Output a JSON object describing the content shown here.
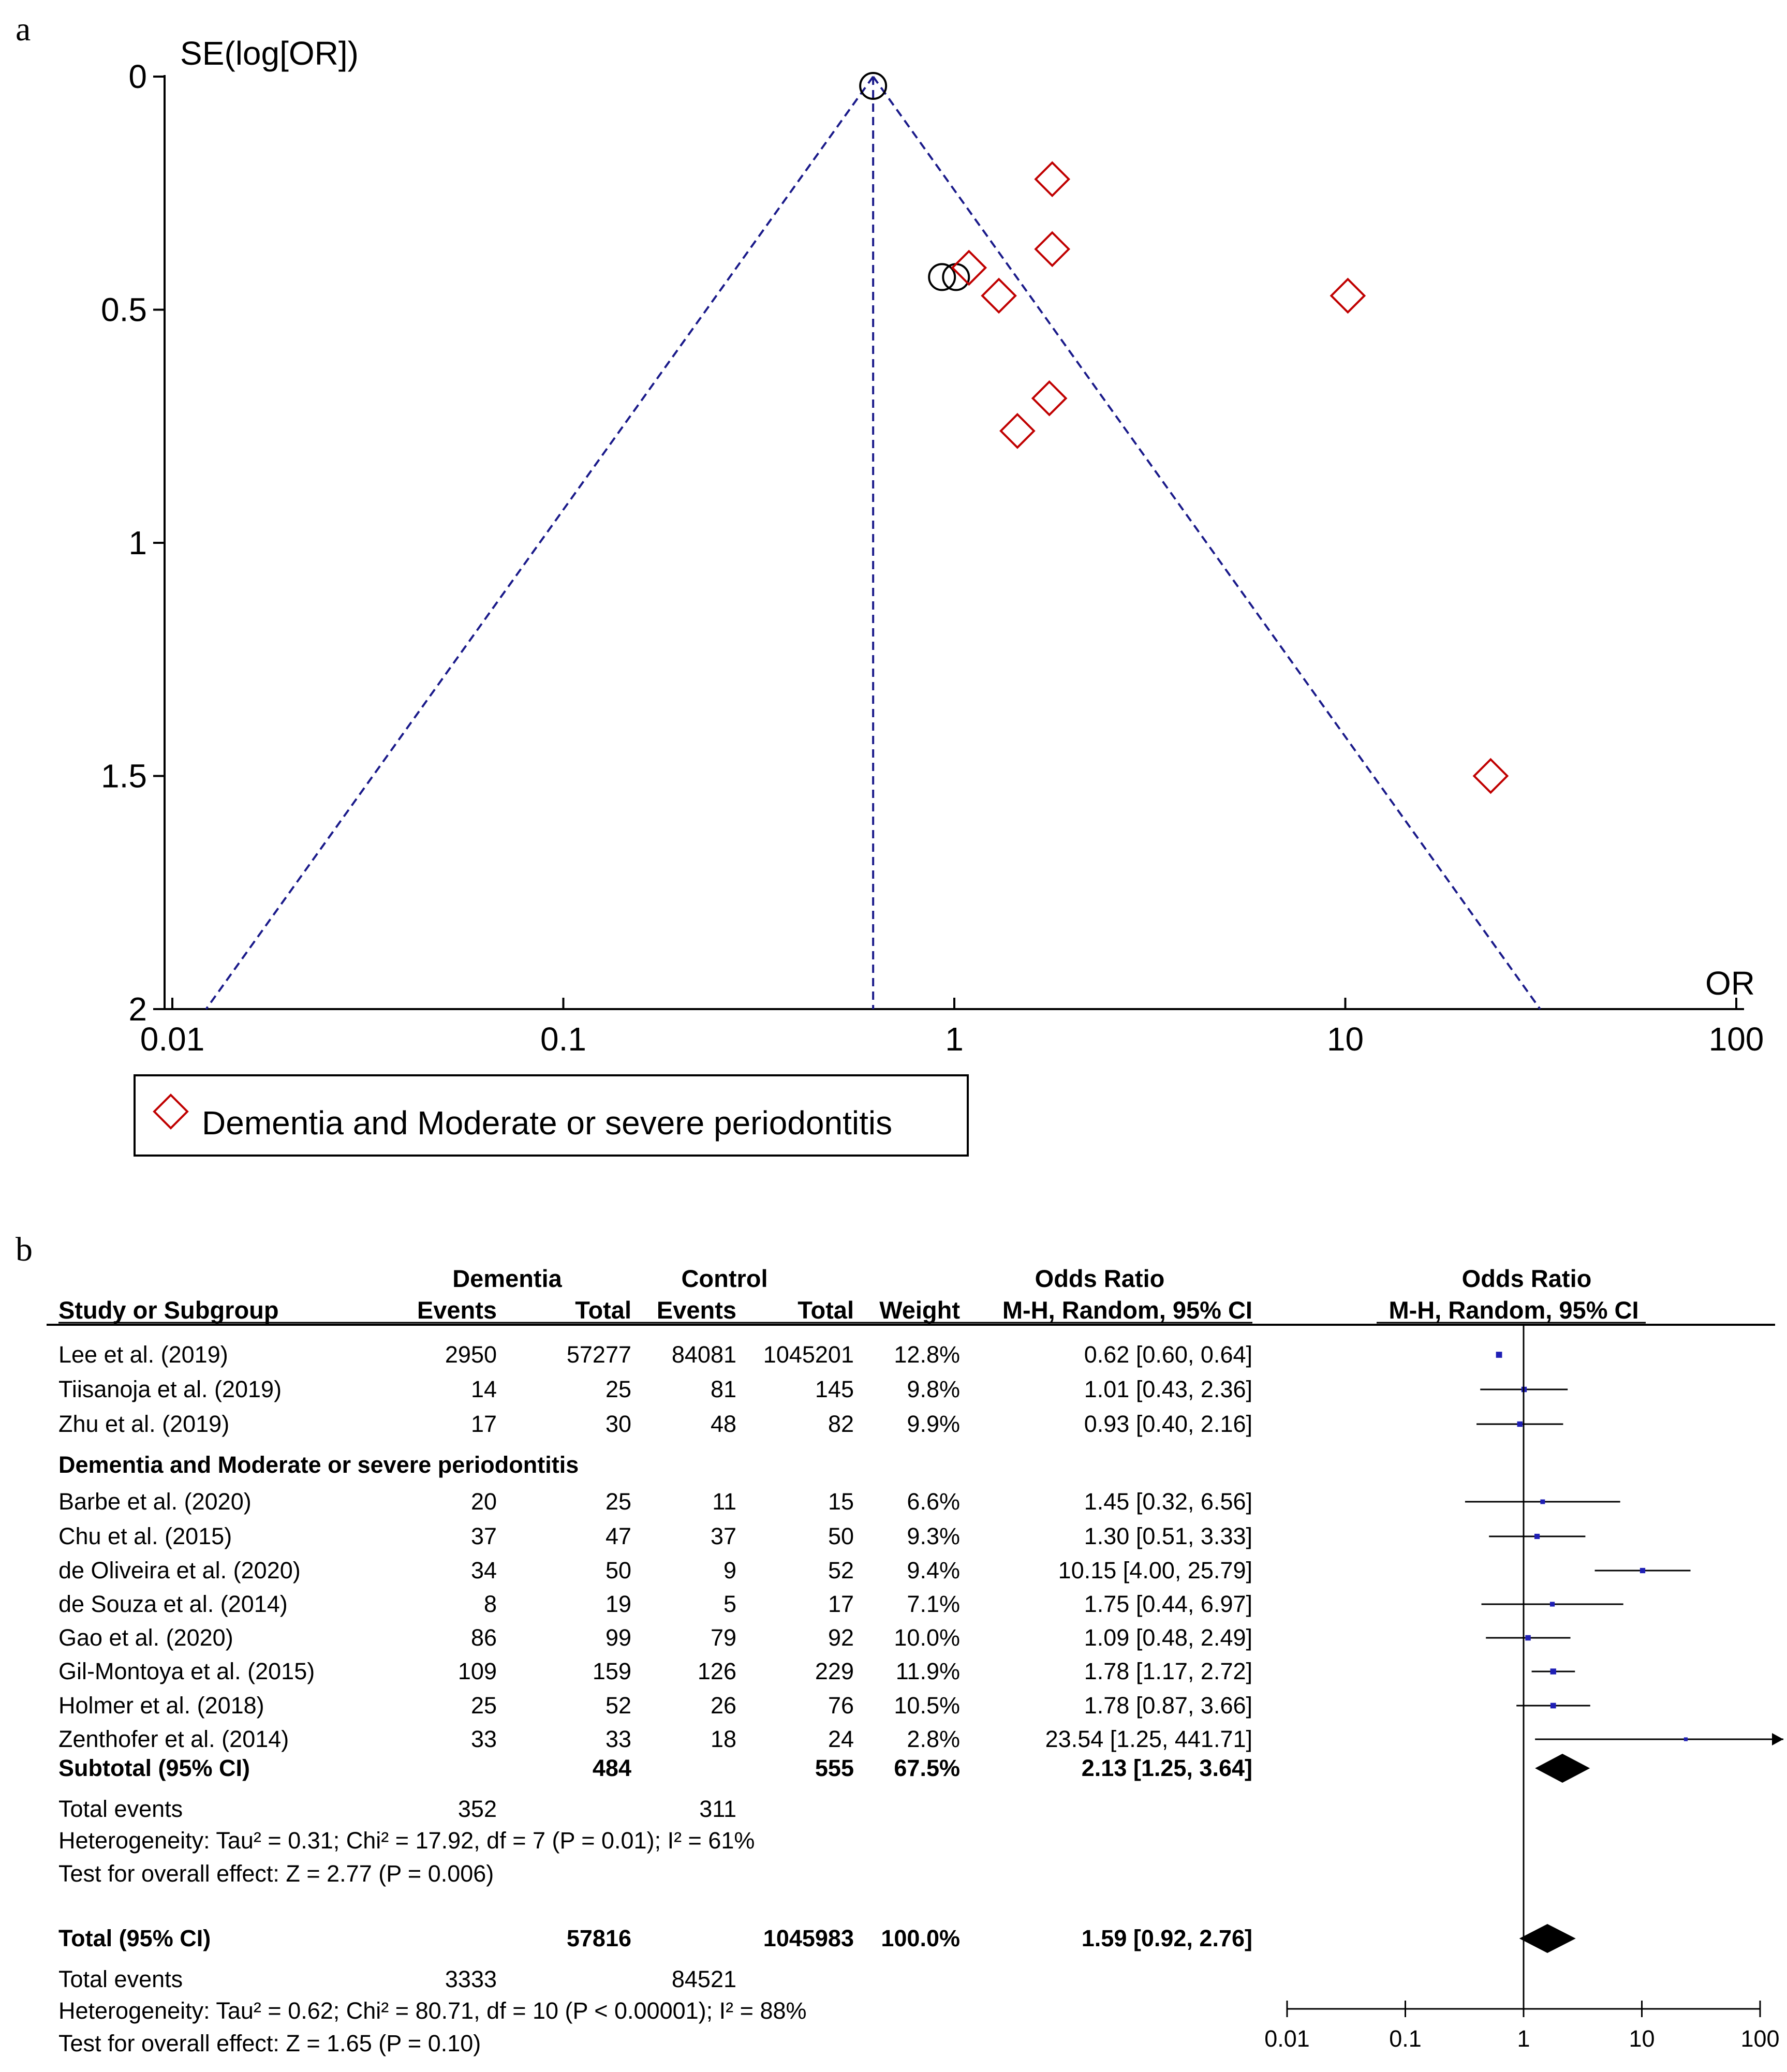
{
  "chart_data": [
    {
      "type": "scatter",
      "panel_label": "a",
      "ylabel": "SE(log[OR])",
      "xlabel": "OR",
      "x_scale": "log",
      "xlim": [
        0.01,
        100
      ],
      "ylim": [
        0,
        2
      ],
      "y_inverted": true,
      "x_ticks": [
        "0.01",
        "0.1",
        "1",
        "10",
        "100"
      ],
      "x_tick_values": [
        0.01,
        0.1,
        1,
        10,
        100
      ],
      "y_ticks": [
        "0",
        "0.5",
        "1",
        "1.5",
        "2"
      ],
      "y_tick_values": [
        0,
        0.5,
        1,
        1.5,
        2
      ],
      "funnel": {
        "pooled_or": 0.62,
        "limits_at_se2": [
          0.0122,
          31.5
        ]
      },
      "series": [
        {
          "marker": "circle",
          "color": "#000000",
          "points": [
            {
              "or": 0.62,
              "se": 0.02
            },
            {
              "or": 0.93,
              "se": 0.43
            },
            {
              "or": 1.01,
              "se": 0.43
            }
          ]
        },
        {
          "name": "Dementia and Moderate or severe periodontitis",
          "marker": "diamond",
          "color": "#c00000",
          "points": [
            {
              "or": 1.78,
              "se": 0.22
            },
            {
              "or": 1.78,
              "se": 0.37
            },
            {
              "or": 1.09,
              "se": 0.41
            },
            {
              "or": 1.3,
              "se": 0.47
            },
            {
              "or": 10.15,
              "se": 0.47
            },
            {
              "or": 1.75,
              "se": 0.69
            },
            {
              "or": 1.45,
              "se": 0.76
            },
            {
              "or": 23.54,
              "se": 1.5
            }
          ]
        }
      ],
      "legend": {
        "position": "bottom-left",
        "entries": [
          "Dementia and Moderate or severe periodontitis"
        ]
      }
    },
    {
      "type": "table",
      "panel_label": "b",
      "group_headers": {
        "dementia": "Dementia",
        "control": "Control",
        "or_table": "Odds Ratio",
        "or_plot": "Odds Ratio"
      },
      "columns": {
        "study": "Study or Subgroup",
        "d_events": "Events",
        "d_total": "Total",
        "c_events": "Events",
        "c_total": "Total",
        "weight": "Weight",
        "ci": "M-H, Random, 95% CI",
        "plot_ci": "M-H, Random, 95% CI"
      },
      "plot_scale": {
        "type": "log",
        "ticks": [
          "0.01",
          "0.1",
          "1",
          "10",
          "100"
        ],
        "tick_values": [
          0.01,
          0.1,
          1,
          10,
          100
        ]
      },
      "rows": [
        {
          "kind": "study",
          "study": "Lee et al. (2019)",
          "de": "2950",
          "dt": "57277",
          "ce": "84081",
          "ct": "1045201",
          "w": "12.8%",
          "ci": "0.62 [0.60, 0.64]",
          "or": 0.62,
          "lo": 0.6,
          "hi": 0.64
        },
        {
          "kind": "study",
          "study": "Tiisanoja et al. (2019)",
          "de": "14",
          "dt": "25",
          "ce": "81",
          "ct": "145",
          "w": "9.8%",
          "ci": "1.01 [0.43, 2.36]",
          "or": 1.01,
          "lo": 0.43,
          "hi": 2.36
        },
        {
          "kind": "study",
          "study": "Zhu et al. (2019)",
          "de": "17",
          "dt": "30",
          "ce": "48",
          "ct": "82",
          "w": "9.9%",
          "ci": "0.93 [0.40, 2.16]",
          "or": 0.93,
          "lo": 0.4,
          "hi": 2.16
        },
        {
          "kind": "group",
          "study": "Dementia and Moderate or severe periodontitis"
        },
        {
          "kind": "study",
          "study": "Barbe et al. (2020)",
          "de": "20",
          "dt": "25",
          "ce": "11",
          "ct": "15",
          "w": "6.6%",
          "ci": "1.45 [0.32, 6.56]",
          "or": 1.45,
          "lo": 0.32,
          "hi": 6.56
        },
        {
          "kind": "study",
          "study": "Chu et al. (2015)",
          "de": "37",
          "dt": "47",
          "ce": "37",
          "ct": "50",
          "w": "9.3%",
          "ci": "1.30 [0.51, 3.33]",
          "or": 1.3,
          "lo": 0.51,
          "hi": 3.33
        },
        {
          "kind": "study",
          "study": "de Oliveira et al. (2020)",
          "de": "34",
          "dt": "50",
          "ce": "9",
          "ct": "52",
          "w": "9.4%",
          "ci": "10.15 [4.00, 25.79]",
          "or": 10.15,
          "lo": 4.0,
          "hi": 25.79
        },
        {
          "kind": "study",
          "study": "de Souza et al. (2014)",
          "de": "8",
          "dt": "19",
          "ce": "5",
          "ct": "17",
          "w": "7.1%",
          "ci": "1.75 [0.44, 6.97]",
          "or": 1.75,
          "lo": 0.44,
          "hi": 6.97
        },
        {
          "kind": "study",
          "study": "Gao et al. (2020)",
          "de": "86",
          "dt": "99",
          "ce": "79",
          "ct": "92",
          "w": "10.0%",
          "ci": "1.09 [0.48, 2.49]",
          "or": 1.09,
          "lo": 0.48,
          "hi": 2.49
        },
        {
          "kind": "study",
          "study": "Gil-Montoya et al. (2015)",
          "de": "109",
          "dt": "159",
          "ce": "126",
          "ct": "229",
          "w": "11.9%",
          "ci": "1.78 [1.17, 2.72]",
          "or": 1.78,
          "lo": 1.17,
          "hi": 2.72
        },
        {
          "kind": "study",
          "study": "Holmer et al. (2018)",
          "de": "25",
          "dt": "52",
          "ce": "26",
          "ct": "76",
          "w": "10.5%",
          "ci": "1.78 [0.87, 3.66]",
          "or": 1.78,
          "lo": 0.87,
          "hi": 3.66
        },
        {
          "kind": "study",
          "study": "Zenthofer et al. (2014)",
          "de": "33",
          "dt": "33",
          "ce": "18",
          "ct": "24",
          "w": "2.8%",
          "ci": "23.54 [1.25, 441.71]",
          "or": 23.54,
          "lo": 1.25,
          "hi": 441.71
        },
        {
          "kind": "subtotal",
          "study": "Subtotal (95% CI)",
          "dt": "484",
          "ct": "555",
          "w": "67.5%",
          "ci": "2.13 [1.25, 3.64]",
          "or": 2.13,
          "lo": 1.25,
          "hi": 3.64
        },
        {
          "kind": "text",
          "study": "Total events",
          "de": "352",
          "ce": "311"
        },
        {
          "kind": "text",
          "study": "Heterogeneity: Tau² = 0.31; Chi² = 17.92, df = 7 (P = 0.01); I² = 61%"
        },
        {
          "kind": "text",
          "study": "Test for overall effect: Z = 2.77 (P = 0.006)"
        },
        {
          "kind": "blank"
        },
        {
          "kind": "total",
          "study": "Total (95% CI)",
          "dt": "57816",
          "ct": "1045983",
          "w": "100.0%",
          "ci": "1.59 [0.92, 2.76]",
          "or": 1.59,
          "lo": 0.92,
          "hi": 2.76
        },
        {
          "kind": "text",
          "study": "Total events",
          "de": "3333",
          "ce": "84521"
        },
        {
          "kind": "text",
          "study": "Heterogeneity: Tau² = 0.62; Chi² = 80.71, df = 10 (P < 0.00001); I² = 88%"
        },
        {
          "kind": "text",
          "study": "Test for overall effect: Z = 1.65 (P = 0.10)"
        }
      ]
    }
  ]
}
